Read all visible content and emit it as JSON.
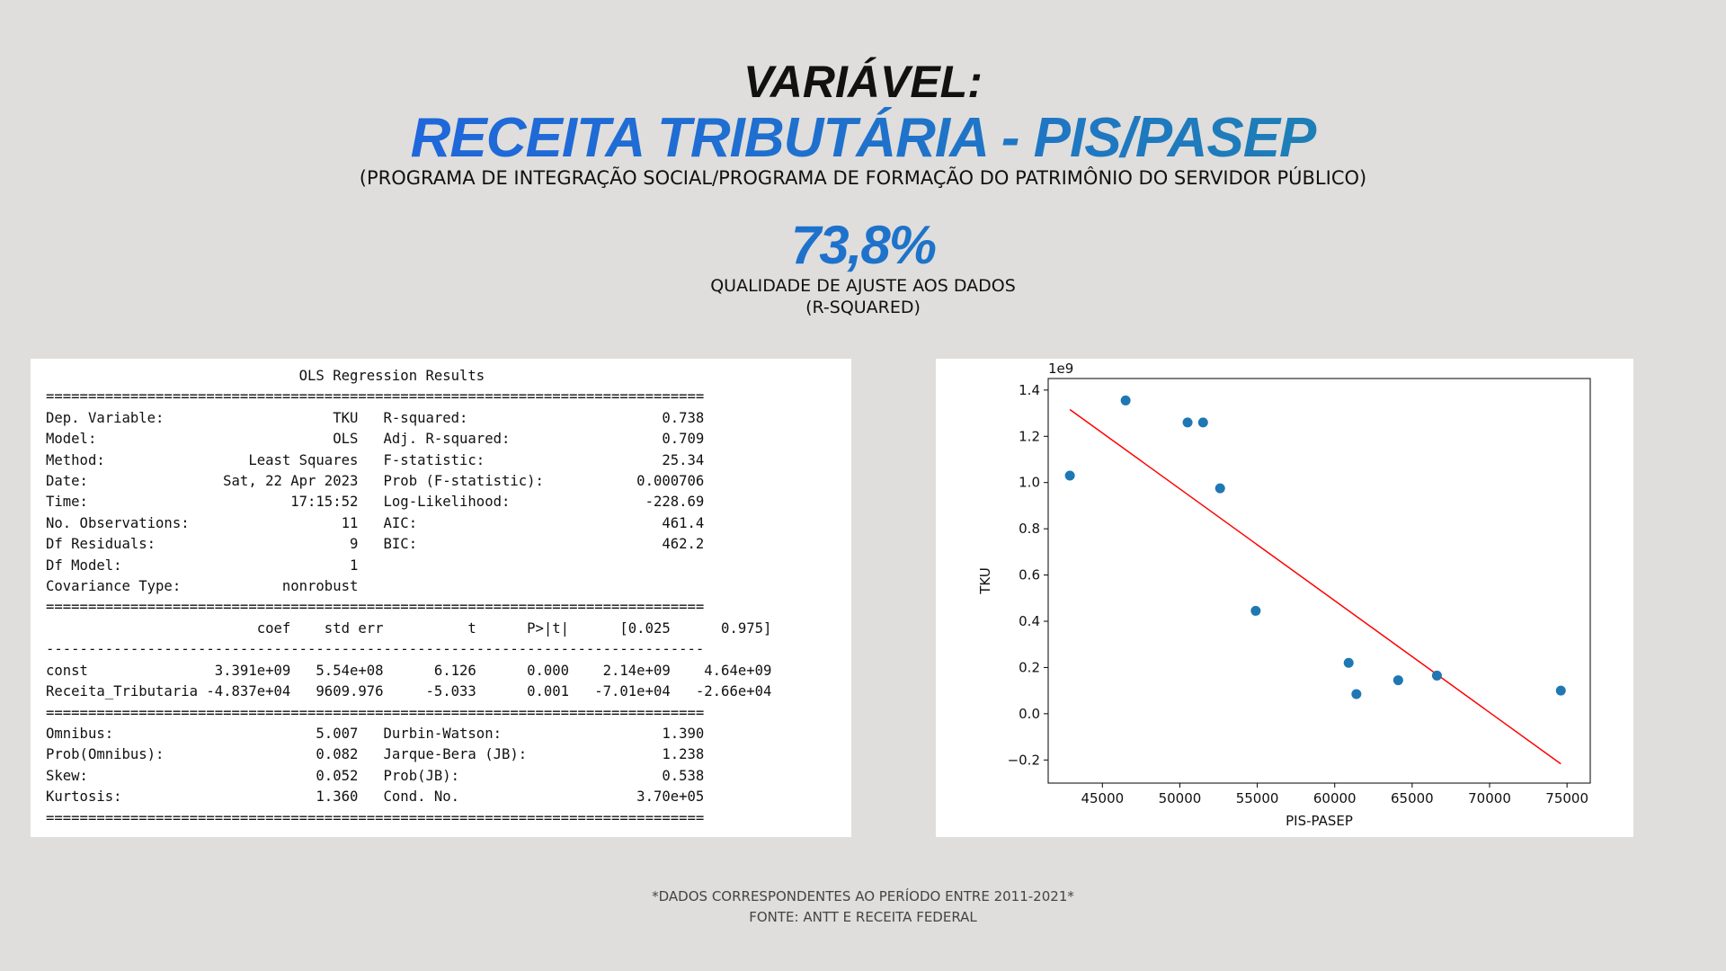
{
  "header": {
    "variable_label": "VARIÁVEL:",
    "title": "RECEITA TRIBUTÁRIA - PIS/PASEP",
    "subtitle": "(PROGRAMA DE INTEGRAÇÃO SOCIAL/PROGRAMA DE FORMAÇÃO DO PATRIMÔNIO DO SERVIDOR PÚBLICO)",
    "metric_value": "73,8%",
    "metric_label_1": "QUALIDADE DE AJUSTE AOS DADOS",
    "metric_label_2": "(R-SQUARED)"
  },
  "ols": {
    "title": "OLS Regression Results",
    "rule_short": "==============================================================================",
    "rule_long": "==============================================================================",
    "rule_dash": "------------------------------------------------------------------------------",
    "summary_lines": [
      "Dep. Variable:                    TKU   R-squared:                       0.738",
      "Model:                            OLS   Adj. R-squared:                  0.709",
      "Method:                 Least Squares   F-statistic:                     25.34",
      "Date:                Sat, 22 Apr 2023   Prob (F-statistic):           0.000706",
      "Time:                        17:15:52   Log-Likelihood:                -228.69",
      "No. Observations:                  11   AIC:                             461.4",
      "Df Residuals:                       9   BIC:                             462.2",
      "Df Model:                           1                                         ",
      "Covariance Type:            nonrobust                                         "
    ],
    "coef_header": "                         coef    std err          t      P>|t|      [0.025      0.975]",
    "coef_lines": [
      "const               3.391e+09   5.54e+08      6.126      0.000    2.14e+09    4.64e+09",
      "Receita_Tributaria -4.837e+04   9609.976     -5.033      0.001   -7.01e+04   -2.66e+04"
    ],
    "diag_lines": [
      "Omnibus:                        5.007   Durbin-Watson:                   1.390",
      "Prob(Omnibus):                  0.082   Jarque-Bera (JB):                1.238",
      "Skew:                           0.052   Prob(JB):                        0.538",
      "Kurtosis:                       1.360   Cond. No.                     3.70e+05"
    ]
  },
  "chart_data": {
    "type": "scatter",
    "xlabel": "PIS-PASEP",
    "ylabel": "TKU",
    "y_offset_label": "1e9",
    "xlim": [
      41500,
      76500
    ],
    "ylim": [
      -0.3,
      1.45
    ],
    "xticks": [
      45000,
      50000,
      55000,
      60000,
      65000,
      70000,
      75000
    ],
    "xtick_labels": [
      "45000",
      "50000",
      "55000",
      "60000",
      "65000",
      "70000",
      "75000"
    ],
    "yticks": [
      -0.2,
      0.0,
      0.2,
      0.4,
      0.6,
      0.8,
      1.0,
      1.2,
      1.4
    ],
    "ytick_labels": [
      "−0.2",
      "0.0",
      "0.2",
      "0.4",
      "0.6",
      "0.8",
      "1.0",
      "1.2",
      "1.4"
    ],
    "points": [
      {
        "x": 42900,
        "y": 1.03
      },
      {
        "x": 46500,
        "y": 1.355
      },
      {
        "x": 50500,
        "y": 1.26
      },
      {
        "x": 51500,
        "y": 1.26
      },
      {
        "x": 52600,
        "y": 0.975
      },
      {
        "x": 54900,
        "y": 0.445
      },
      {
        "x": 60900,
        "y": 0.22
      },
      {
        "x": 61400,
        "y": 0.085
      },
      {
        "x": 64100,
        "y": 0.145
      },
      {
        "x": 66600,
        "y": 0.165
      },
      {
        "x": 74600,
        "y": 0.1
      }
    ],
    "fit_line": {
      "x": [
        42900,
        74600
      ],
      "y": [
        1.316,
        -0.217
      ]
    },
    "point_color": "#1f77b4",
    "line_color": "#ff0000"
  },
  "footer": {
    "line1": "*DADOS CORRESPONDENTES AO PERÍODO ENTRE 2011-2021*",
    "line2": "FONTE: ANTT E RECEITA FEDERAL"
  }
}
